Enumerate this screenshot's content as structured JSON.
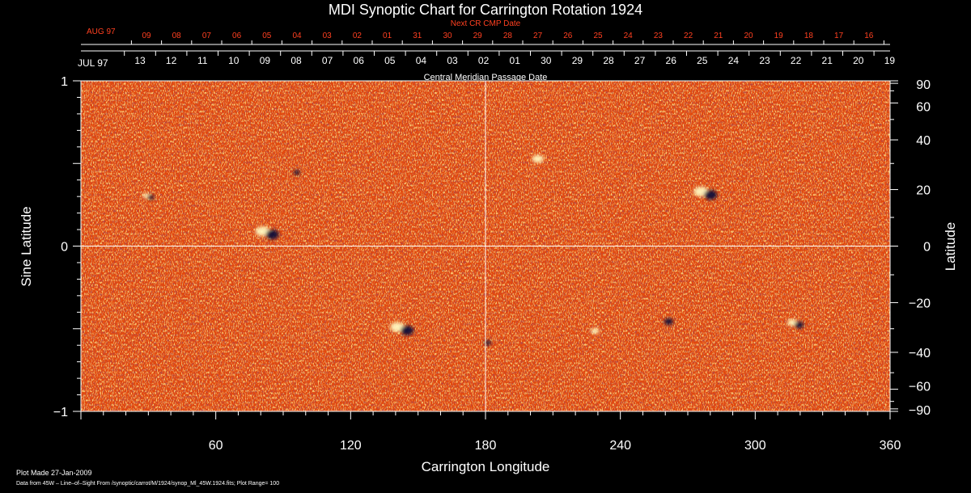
{
  "chart_data": {
    "type": "heatmap",
    "title": "MDI Synoptic Chart for Carrington Rotation 1924",
    "xlabel": "Carrington Longitude",
    "ylabel_left": "Sine Latitude",
    "ylabel_right": "Latitude",
    "xlim": [
      0,
      360
    ],
    "ylim": [
      -1,
      1
    ],
    "x_ticks": [
      "60",
      "120",
      "180",
      "240",
      "300",
      "360"
    ],
    "y_ticks_left": [
      "1",
      "0",
      "−1"
    ],
    "y_ticks_right": [
      "90",
      "60",
      "40",
      "20",
      "0",
      "−20",
      "−40",
      "−60",
      "−90"
    ],
    "top_axis_label": "Central Meridian Passage Date",
    "top_axis_month": "JUL 97",
    "top_axis_dates": [
      "13",
      "12",
      "11",
      "10",
      "09",
      "08",
      "07",
      "06",
      "05",
      "04",
      "03",
      "02",
      "01",
      "30",
      "29",
      "28",
      "27",
      "26",
      "25",
      "24",
      "23",
      "22",
      "21",
      "20",
      "19"
    ],
    "next_axis_label": "Next CR CMP Date",
    "next_axis_month": "AUG 97",
    "next_axis_dates": [
      "09",
      "08",
      "07",
      "06",
      "05",
      "04",
      "03",
      "02",
      "01",
      "31",
      "30",
      "29",
      "28",
      "27",
      "26",
      "25",
      "24",
      "23",
      "22",
      "21",
      "20",
      "19",
      "18",
      "17",
      "16"
    ],
    "grid": "central crosshair at longitude 180 and latitude 0",
    "colors": {
      "background": "#e24a10",
      "positive": "#fff8c0",
      "negative": "#0a0a3a",
      "crosshair": "#ffffff",
      "frame": "#ffffff",
      "red_labels": "#ff4020"
    },
    "plot_range": 100,
    "active_regions": [
      {
        "lon": 83,
        "sinlat": 0.08,
        "strength": 1.0,
        "polarity": "mixed"
      },
      {
        "lon": 143,
        "sinlat": -0.5,
        "strength": 1.0,
        "polarity": "mixed"
      },
      {
        "lon": 278,
        "sinlat": 0.32,
        "strength": 1.0,
        "polarity": "mixed"
      },
      {
        "lon": 318,
        "sinlat": -0.47,
        "strength": 0.7,
        "polarity": "mixed"
      },
      {
        "lon": 205,
        "sinlat": 0.52,
        "strength": 0.8,
        "polarity": "positive"
      },
      {
        "lon": 260,
        "sinlat": -0.45,
        "strength": 0.7,
        "polarity": "negative"
      },
      {
        "lon": 30,
        "sinlat": 0.3,
        "strength": 0.5,
        "polarity": "mixed"
      },
      {
        "lon": 95,
        "sinlat": 0.45,
        "strength": 0.5,
        "polarity": "negative"
      },
      {
        "lon": 180,
        "sinlat": -0.58,
        "strength": 0.5,
        "polarity": "negative"
      },
      {
        "lon": 230,
        "sinlat": -0.52,
        "strength": 0.6,
        "polarity": "positive"
      }
    ]
  },
  "footer": {
    "plot_made": "Plot Made 27-Jan-2009",
    "data_from": "Data from 45W – Line–of–Sight From /synoptic/carrot/M/1924/synop_Ml_45W.1924.fits; Plot Range=  100"
  }
}
